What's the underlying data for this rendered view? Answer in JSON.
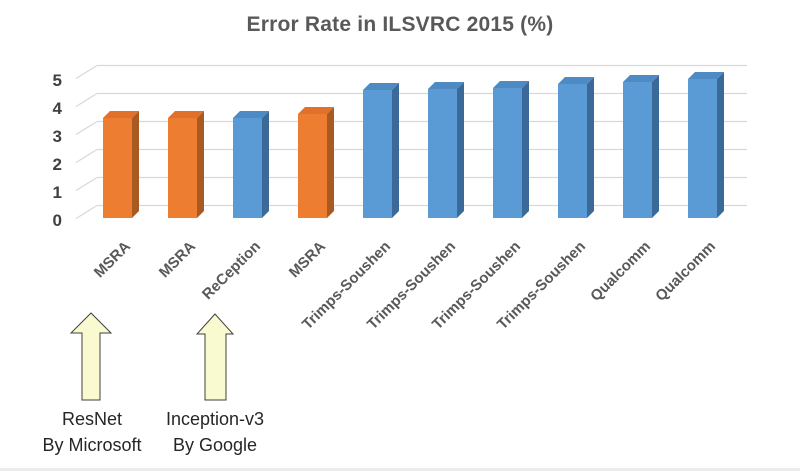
{
  "title": "Error Rate in ILSVRC 2015 (%)",
  "chart_data": {
    "type": "bar",
    "style": "3d-column",
    "title": "Error Rate in ILSVRC 2015 (%)",
    "categories": [
      "MSRA",
      "MSRA",
      "ReCeption",
      "MSRA",
      "Trimps-Soushen",
      "Trimps-Soushen",
      "Trimps-Soushen",
      "Trimps-Soushen",
      "Qualcomm",
      "Qualcomm"
    ],
    "values": [
      3.57,
      3.57,
      3.58,
      3.7,
      4.58,
      4.59,
      4.65,
      4.8,
      4.87,
      4.95
    ],
    "bar_colors": [
      "orange",
      "orange",
      "blue",
      "orange",
      "blue",
      "blue",
      "blue",
      "blue",
      "blue",
      "blue"
    ],
    "palette": {
      "orange": {
        "front": "#ED7D31",
        "side": "#A85A21",
        "top": "#E0702A"
      },
      "blue": {
        "front": "#5B9BD5",
        "side": "#3B6A99",
        "top": "#4E8BC4"
      }
    },
    "xlabel": "",
    "ylabel": "",
    "ylim": [
      0,
      5
    ],
    "yticks": [
      5,
      4,
      3,
      2,
      1,
      0
    ],
    "grid": true,
    "legend": false
  },
  "annotations": [
    {
      "line1": "ResNet",
      "line2": "By Microsoft"
    },
    {
      "line1": "Inception-v3",
      "line2": "By Google"
    }
  ],
  "colors": {
    "grid": "#D9D9D9",
    "title_text": "#595959",
    "axis_text": "#404040",
    "category_text": "#595959",
    "arrow_fill": "#FAFAD0",
    "arrow_stroke": "#404040"
  }
}
